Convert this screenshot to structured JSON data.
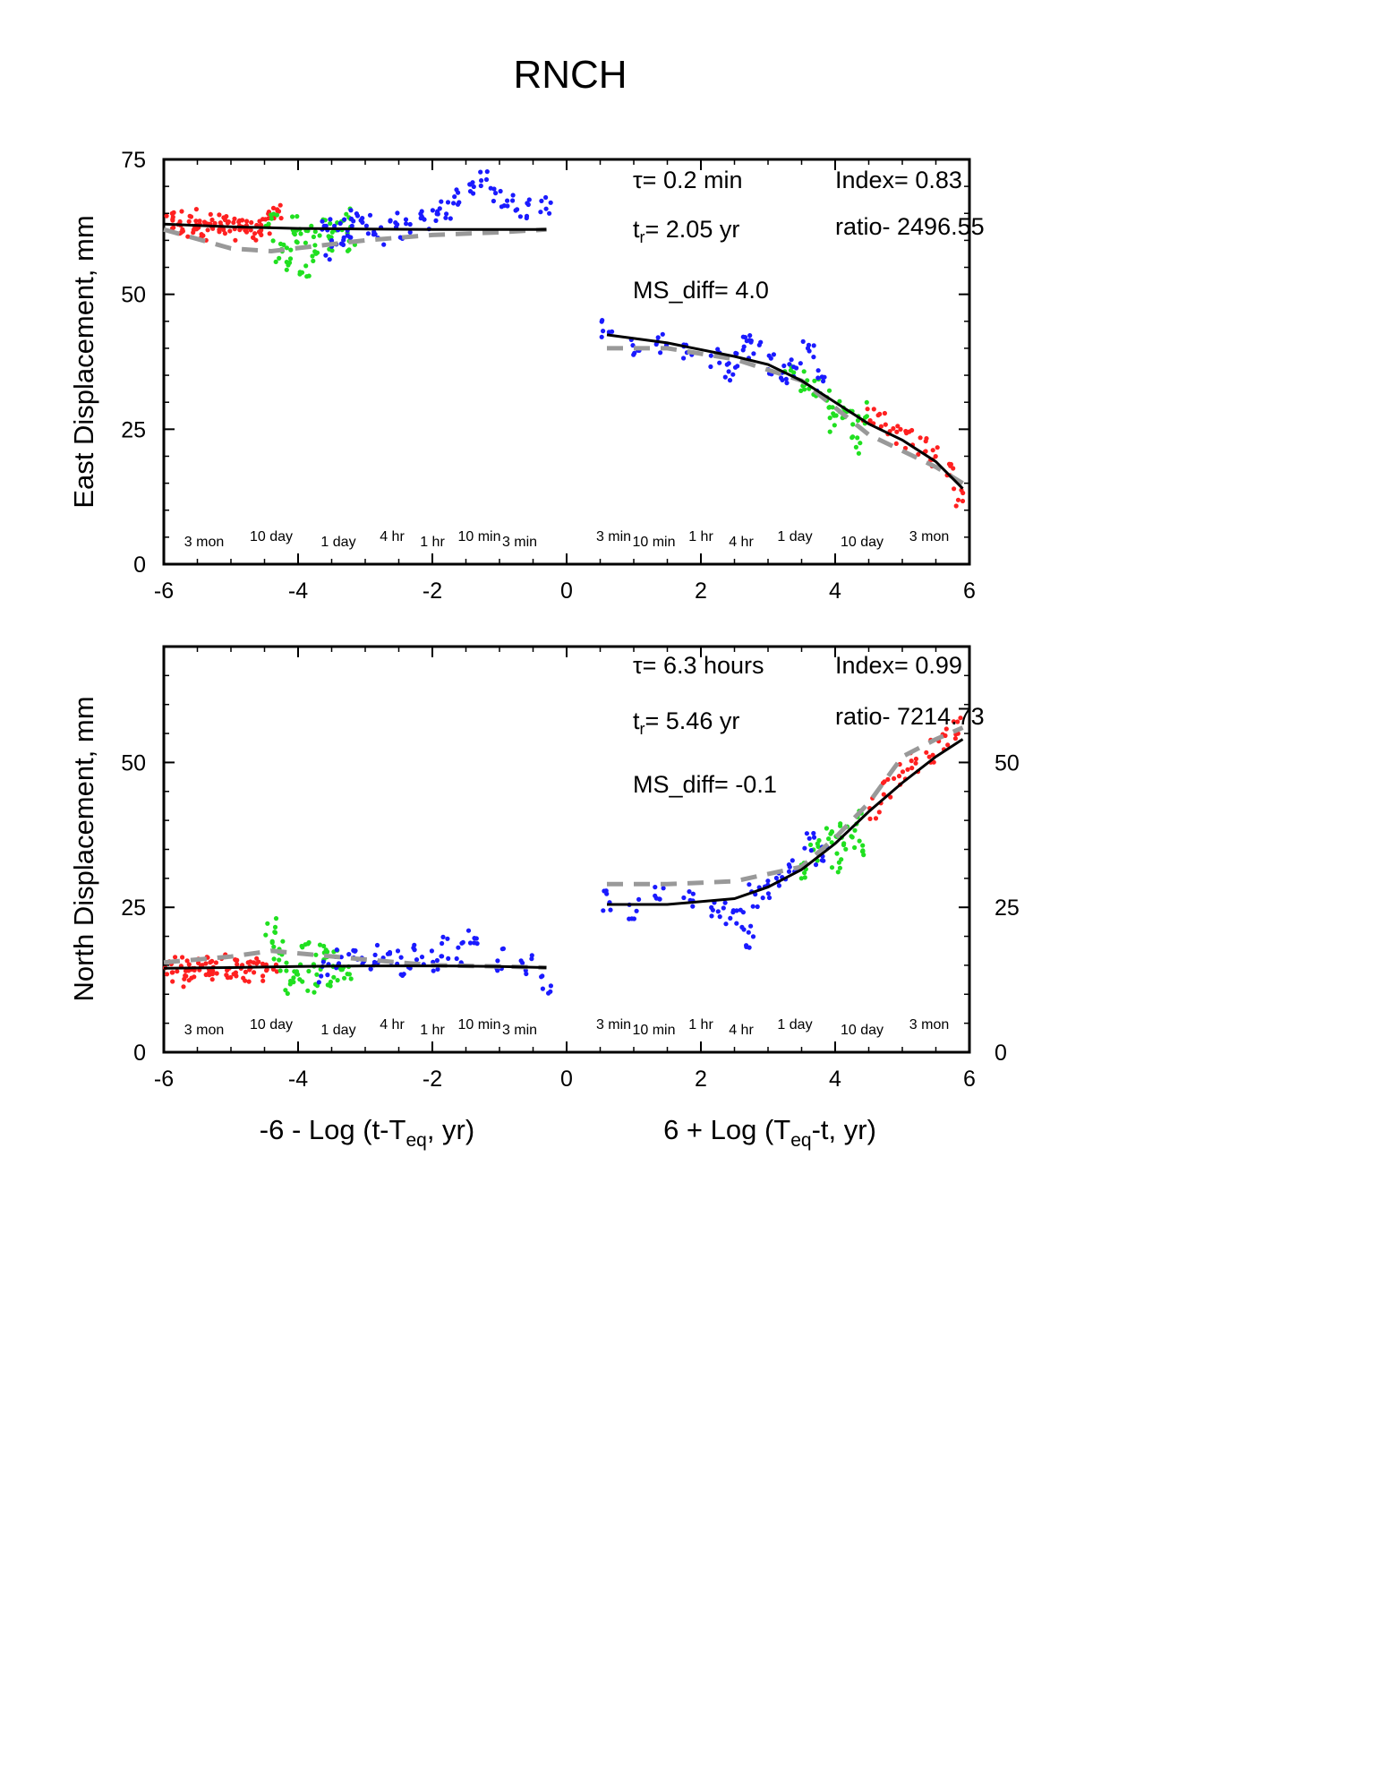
{
  "title": "RNCH",
  "colors": {
    "red": "#ff2020",
    "green": "#20e020",
    "blue": "#1a1aff",
    "fit": "#000000",
    "model_dash": "#999999",
    "frame": "#000000"
  },
  "shared_x": {
    "xlim": [
      -6,
      6
    ],
    "ticks": [
      "-6",
      "-4",
      "-2",
      "0",
      "2",
      "4",
      "6"
    ],
    "left_label": {
      "prefix": "-6 - Log (t-T",
      "sub": "eq",
      "suffix": ", yr)"
    },
    "right_label": {
      "prefix": "6 + Log (T",
      "sub": "eq",
      "suffix": "-t, yr)"
    },
    "time_markers_left": [
      {
        "x": -5.4,
        "label": "3 mon"
      },
      {
        "x": -4.4,
        "label": "10 day"
      },
      {
        "x": -3.4,
        "label": "1 day"
      },
      {
        "x": -2.6,
        "label": "4 hr"
      },
      {
        "x": -2.0,
        "label": "1 hr"
      },
      {
        "x": -1.3,
        "label": "10 min"
      },
      {
        "x": -0.7,
        "label": "3 min"
      }
    ],
    "time_markers_right": [
      {
        "x": 0.7,
        "label": "3 min"
      },
      {
        "x": 1.3,
        "label": "10 min"
      },
      {
        "x": 2.0,
        "label": "1 hr"
      },
      {
        "x": 2.6,
        "label": "4 hr"
      },
      {
        "x": 3.4,
        "label": "1 day"
      },
      {
        "x": 4.4,
        "label": "10 day"
      },
      {
        "x": 5.4,
        "label": "3 mon"
      }
    ]
  },
  "chart_data": [
    {
      "type": "scatter",
      "panel": "east",
      "ylabel": "East Displacement, mm",
      "ylim": [
        0,
        75
      ],
      "yticks": [
        "0",
        "25",
        "50",
        "75"
      ],
      "right_axis_labels": false,
      "annotations": {
        "tau": "= 0.2 min",
        "tr": "= 2.05 yr",
        "index": "Index= 0.83",
        "ratio": "ratio- 2496.55",
        "ms_diff": "MS_diff= 4.0"
      },
      "series": [
        {
          "color": "red",
          "points": [
            [
              -5.9,
              63
            ],
            [
              -5.8,
              64
            ],
            [
              -5.7,
              62
            ],
            [
              -5.6,
              63
            ],
            [
              -5.5,
              64
            ],
            [
              -5.4,
              62
            ],
            [
              -5.3,
              63
            ],
            [
              -5.2,
              62
            ],
            [
              -5.1,
              63
            ],
            [
              -5.0,
              62
            ],
            [
              -4.9,
              62
            ],
            [
              -4.8,
              63
            ],
            [
              -4.7,
              62
            ],
            [
              -4.6,
              62
            ],
            [
              -4.5,
              62
            ],
            [
              -4.4,
              64
            ],
            [
              -4.3,
              66
            ],
            [
              4.5,
              27
            ],
            [
              4.7,
              26
            ],
            [
              4.9,
              24
            ],
            [
              5.1,
              23
            ],
            [
              5.3,
              22
            ],
            [
              5.5,
              20
            ],
            [
              5.7,
              18
            ],
            [
              5.85,
              12
            ]
          ]
        },
        {
          "color": "green",
          "points": [
            [
              -4.4,
              64
            ],
            [
              -4.3,
              58
            ],
            [
              -4.2,
              56
            ],
            [
              -4.1,
              60
            ],
            [
              -4.0,
              63
            ],
            [
              -3.9,
              55
            ],
            [
              -3.8,
              61
            ],
            [
              -3.7,
              58
            ],
            [
              -3.6,
              62
            ],
            [
              -3.5,
              60
            ],
            [
              -3.4,
              62
            ],
            [
              -3.3,
              64
            ],
            [
              -3.2,
              60
            ],
            [
              3.3,
              36
            ],
            [
              3.5,
              34
            ],
            [
              3.7,
              33
            ],
            [
              3.9,
              31
            ],
            [
              4.0,
              26
            ],
            [
              4.1,
              29
            ],
            [
              4.2,
              27
            ],
            [
              4.3,
              22
            ],
            [
              4.4,
              28
            ]
          ]
        },
        {
          "color": "blue",
          "points": [
            [
              -3.6,
              63
            ],
            [
              -3.5,
              58
            ],
            [
              -3.4,
              62
            ],
            [
              -3.3,
              60
            ],
            [
              -3.2,
              64
            ],
            [
              -3.0,
              63
            ],
            [
              -2.8,
              61
            ],
            [
              -2.6,
              64
            ],
            [
              -2.4,
              62
            ],
            [
              -2.2,
              65
            ],
            [
              -2.0,
              64
            ],
            [
              -1.8,
              66
            ],
            [
              -1.6,
              68
            ],
            [
              -1.4,
              70
            ],
            [
              -1.2,
              71
            ],
            [
              -1.0,
              68
            ],
            [
              -0.8,
              67
            ],
            [
              -0.6,
              66
            ],
            [
              -0.3,
              67
            ],
            [
              0.6,
              44
            ],
            [
              1.0,
              40
            ],
            [
              1.4,
              41
            ],
            [
              1.8,
              40
            ],
            [
              2.2,
              38
            ],
            [
              2.4,
              36
            ],
            [
              2.6,
              38
            ],
            [
              2.7,
              42
            ],
            [
              2.8,
              40
            ],
            [
              3.0,
              37
            ],
            [
              3.2,
              35
            ],
            [
              3.4,
              36
            ],
            [
              3.6,
              40
            ],
            [
              3.8,
              34
            ]
          ]
        }
      ],
      "fit_left": [
        [
          -6,
          63
        ],
        [
          -5,
          62.5
        ],
        [
          -4,
          62.2
        ],
        [
          -3,
          62.1
        ],
        [
          -2,
          62
        ],
        [
          -1,
          62
        ],
        [
          -0.3,
          62
        ]
      ],
      "fit_right": [
        [
          0.6,
          42.5
        ],
        [
          1.5,
          41
        ],
        [
          2.5,
          38.5
        ],
        [
          3.0,
          37
        ],
        [
          3.5,
          34
        ],
        [
          4.0,
          30
        ],
        [
          4.5,
          26
        ],
        [
          5.0,
          23
        ],
        [
          5.5,
          19
        ],
        [
          5.9,
          14
        ]
      ],
      "model_left": [
        [
          -6,
          62
        ],
        [
          -5,
          58.5
        ],
        [
          -4.4,
          58
        ],
        [
          -3,
          60
        ],
        [
          -2,
          61
        ],
        [
          -1,
          61.5
        ],
        [
          -0.3,
          62
        ]
      ],
      "model_right": [
        [
          0.6,
          40
        ],
        [
          1.5,
          40
        ],
        [
          2.5,
          38
        ],
        [
          3.5,
          34
        ],
        [
          4.0,
          29
        ],
        [
          4.5,
          24
        ],
        [
          5.0,
          21
        ],
        [
          5.5,
          18
        ],
        [
          5.9,
          15
        ]
      ]
    },
    {
      "type": "scatter",
      "panel": "north",
      "ylabel": "North Displacement, mm",
      "ylim": [
        0,
        70
      ],
      "yticks": [
        "0",
        "25",
        "50"
      ],
      "right_axis_labels": true,
      "annotations": {
        "tau": "= 6.3 hours",
        "tr": "= 5.46 yr",
        "index": "Index= 0.99",
        "ratio": "ratio- 7214.73",
        "ms_diff": "MS_diff= -0.1"
      },
      "series": [
        {
          "color": "red",
          "points": [
            [
              -5.9,
              14
            ],
            [
              -5.8,
              15
            ],
            [
              -5.7,
              13
            ],
            [
              -5.6,
              14
            ],
            [
              -5.5,
              15
            ],
            [
              -5.4,
              14
            ],
            [
              -5.3,
              15
            ],
            [
              -5.2,
              14
            ],
            [
              -5.1,
              15
            ],
            [
              -5.0,
              14
            ],
            [
              -4.9,
              15
            ],
            [
              -4.8,
              14
            ],
            [
              -4.7,
              15
            ],
            [
              -4.6,
              14
            ],
            [
              -4.4,
              15
            ],
            [
              4.6,
              42
            ],
            [
              4.8,
              46
            ],
            [
              5.0,
              48
            ],
            [
              5.2,
              50
            ],
            [
              5.4,
              52
            ],
            [
              5.6,
              54
            ],
            [
              5.8,
              56
            ]
          ]
        },
        {
          "color": "green",
          "points": [
            [
              -4.4,
              22
            ],
            [
              -4.3,
              18
            ],
            [
              -4.2,
              16
            ],
            [
              -4.1,
              12
            ],
            [
              -4.0,
              14
            ],
            [
              -3.9,
              17
            ],
            [
              -3.8,
              12
            ],
            [
              -3.7,
              15
            ],
            [
              -3.6,
              18
            ],
            [
              -3.5,
              13
            ],
            [
              -3.4,
              16
            ],
            [
              -3.3,
              14
            ],
            [
              3.5,
              32
            ],
            [
              3.7,
              35
            ],
            [
              3.9,
              37
            ],
            [
              4.0,
              33
            ],
            [
              4.1,
              38
            ],
            [
              4.2,
              36
            ],
            [
              4.3,
              40
            ],
            [
              4.4,
              35
            ]
          ]
        },
        {
          "color": "blue",
          "points": [
            [
              -3.6,
              14
            ],
            [
              -3.4,
              16
            ],
            [
              -3.2,
              18
            ],
            [
              -3.0,
              15
            ],
            [
              -2.8,
              17
            ],
            [
              -2.6,
              16
            ],
            [
              -2.4,
              15
            ],
            [
              -2.2,
              17
            ],
            [
              -2.0,
              16
            ],
            [
              -1.8,
              18
            ],
            [
              -1.6,
              17
            ],
            [
              -1.4,
              19
            ],
            [
              -1.0,
              16
            ],
            [
              -0.6,
              15
            ],
            [
              -0.3,
              12
            ],
            [
              0.6,
              26
            ],
            [
              1.0,
              25
            ],
            [
              1.4,
              27
            ],
            [
              1.8,
              26
            ],
            [
              2.2,
              25
            ],
            [
              2.4,
              24
            ],
            [
              2.6,
              23
            ],
            [
              2.7,
              20
            ],
            [
              2.8,
              27
            ],
            [
              3.0,
              28
            ],
            [
              3.2,
              30
            ],
            [
              3.4,
              32
            ],
            [
              3.6,
              36
            ],
            [
              3.8,
              34
            ]
          ]
        }
      ],
      "fit_left": [
        [
          -6,
          14.5
        ],
        [
          -5,
          14.6
        ],
        [
          -4,
          14.8
        ],
        [
          -3,
          14.9
        ],
        [
          -2,
          14.9
        ],
        [
          -1,
          14.8
        ],
        [
          -0.3,
          14.6
        ]
      ],
      "fit_right": [
        [
          0.6,
          25.5
        ],
        [
          1.5,
          25.5
        ],
        [
          2.5,
          26.5
        ],
        [
          3.0,
          28.5
        ],
        [
          3.5,
          31.5
        ],
        [
          4.0,
          36
        ],
        [
          4.5,
          41.5
        ],
        [
          5.0,
          46.5
        ],
        [
          5.5,
          51
        ],
        [
          5.9,
          54
        ]
      ],
      "model_left": [
        [
          -6,
          15.5
        ],
        [
          -5,
          16.5
        ],
        [
          -4.4,
          17.5
        ],
        [
          -3,
          16
        ],
        [
          -2,
          15
        ],
        [
          -1,
          14.8
        ],
        [
          -0.3,
          14.6
        ]
      ],
      "model_right": [
        [
          0.6,
          29
        ],
        [
          1.5,
          29
        ],
        [
          2.5,
          29.5
        ],
        [
          3.5,
          32
        ],
        [
          4.0,
          37
        ],
        [
          4.5,
          43
        ],
        [
          5.0,
          51
        ],
        [
          5.5,
          54
        ],
        [
          5.9,
          56
        ]
      ]
    }
  ]
}
